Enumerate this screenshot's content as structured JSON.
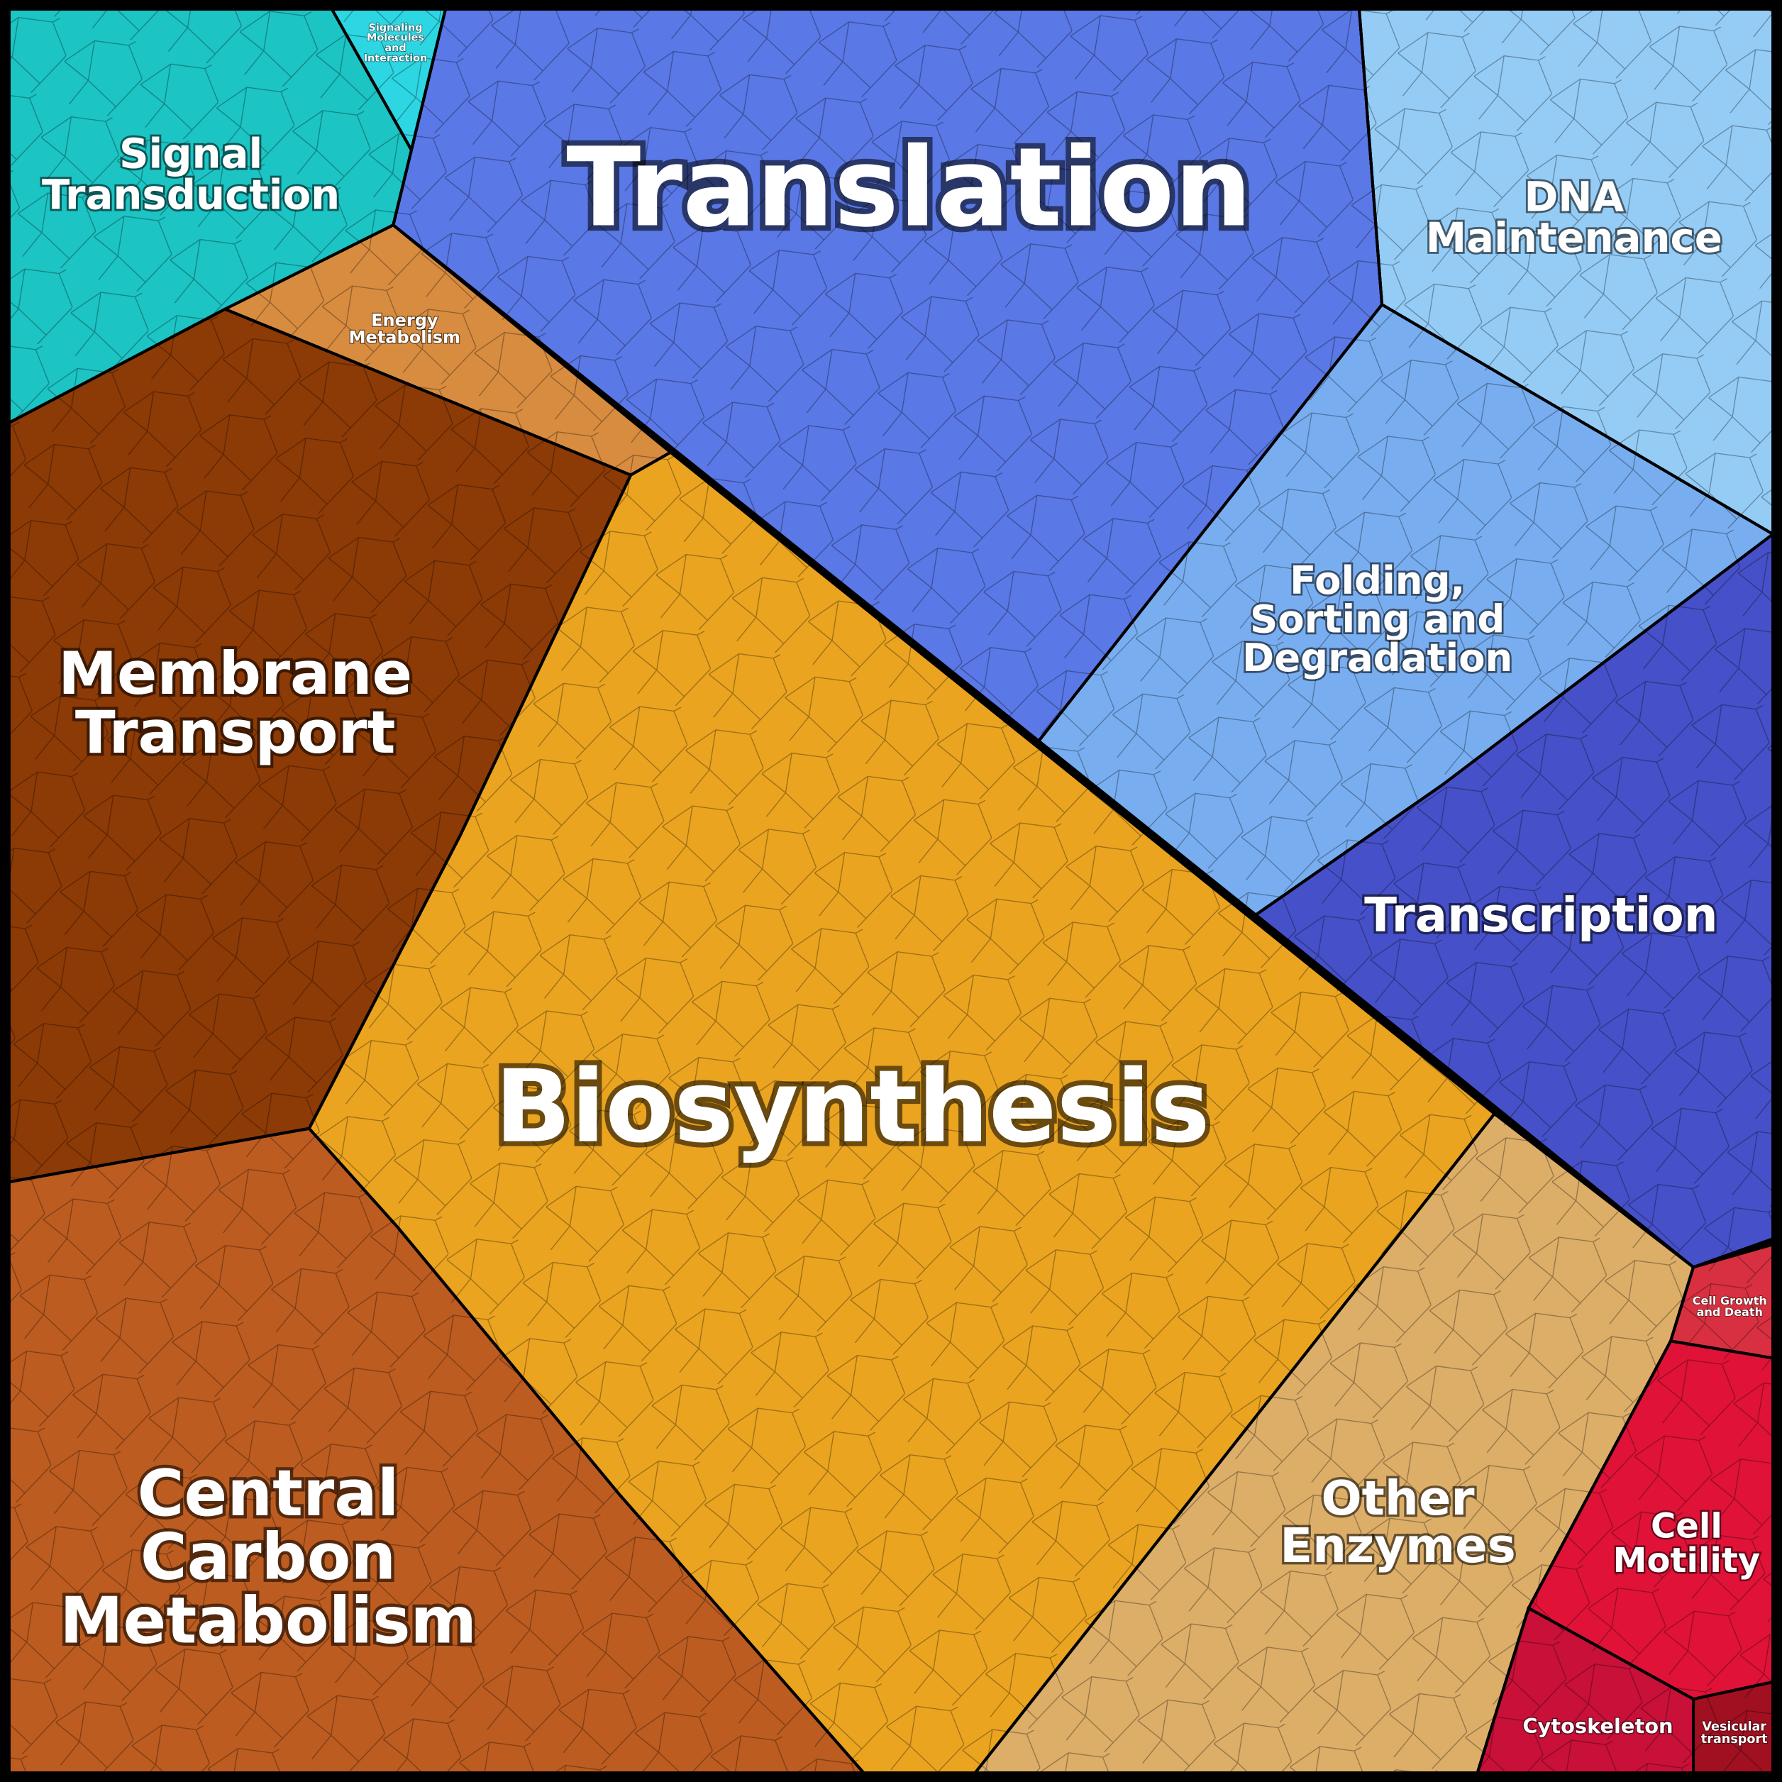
{
  "regions": [
    {
      "lines": [
        "Translation"
      ]
    },
    {
      "lines": [
        "Signal",
        "Transduction"
      ]
    },
    {
      "lines": [
        "Signaling",
        "Molecules",
        "and",
        "Interaction"
      ]
    },
    {
      "lines": [
        "DNA",
        "Maintenance"
      ]
    },
    {
      "lines": [
        "Folding,",
        "Sorting and",
        "Degradation"
      ]
    },
    {
      "lines": [
        "Transcription"
      ]
    },
    {
      "lines": [
        "Energy",
        "Metabolism"
      ]
    },
    {
      "lines": [
        "Membrane",
        "Transport"
      ]
    },
    {
      "lines": [
        "Biosynthesis"
      ]
    },
    {
      "lines": [
        "Central",
        "Carbon",
        "Metabolism"
      ]
    },
    {
      "lines": [
        "Other",
        "Enzymes"
      ]
    },
    {
      "lines": [
        "Cell Growth",
        "and Death"
      ]
    },
    {
      "lines": [
        "Cell",
        "Motility"
      ]
    },
    {
      "lines": [
        "Cytoskeleton"
      ]
    },
    {
      "lines": [
        "Vesicular",
        "transport"
      ]
    }
  ]
}
